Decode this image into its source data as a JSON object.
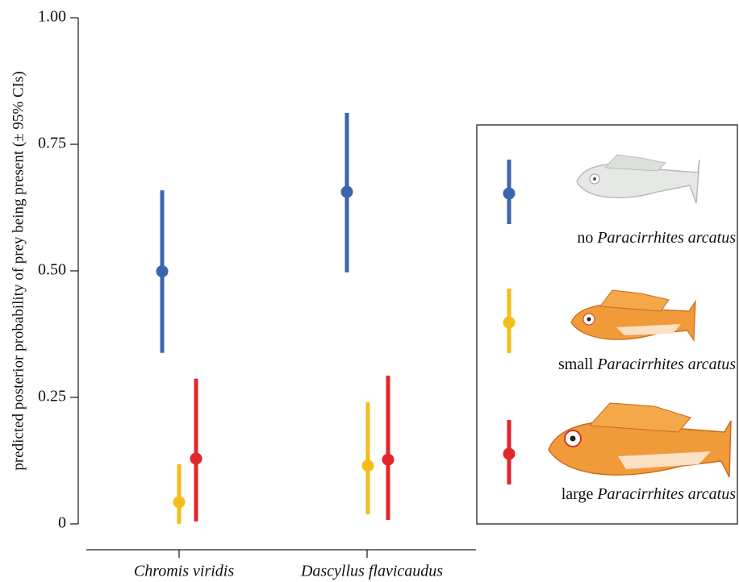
{
  "chart_data": {
    "type": "pointrange",
    "y_label": "predicted posterior probability of prey being present (± 95% CIs)",
    "categories": [
      "Chromis viridis",
      "Dascyllus flavicaudus"
    ],
    "series": [
      {
        "name": "no Paracirrhites arcatus",
        "color": "#3b66ae",
        "values": [
          0.499,
          0.656
        ],
        "lower": [
          0.338,
          0.497
        ],
        "upper": [
          0.659,
          0.812
        ]
      },
      {
        "name": "small Paracirrhites arcatus",
        "color": "#f4bd18",
        "values": [
          0.043,
          0.115
        ],
        "lower": [
          0.0,
          0.019
        ],
        "upper": [
          0.118,
          0.24
        ]
      },
      {
        "name": "large Paracirrhites arcatus",
        "color": "#e2262b",
        "values": [
          0.129,
          0.127
        ],
        "lower": [
          0.005,
          0.008
        ],
        "upper": [
          0.287,
          0.293
        ]
      }
    ],
    "ylim": [
      -0.051,
      1.0
    ],
    "yticks": [
      0,
      0.25,
      {
        "value": 0.5,
        "label": "0.50"
      },
      0.75,
      {
        "value": 1.0,
        "label": "1.00"
      }
    ]
  }
}
